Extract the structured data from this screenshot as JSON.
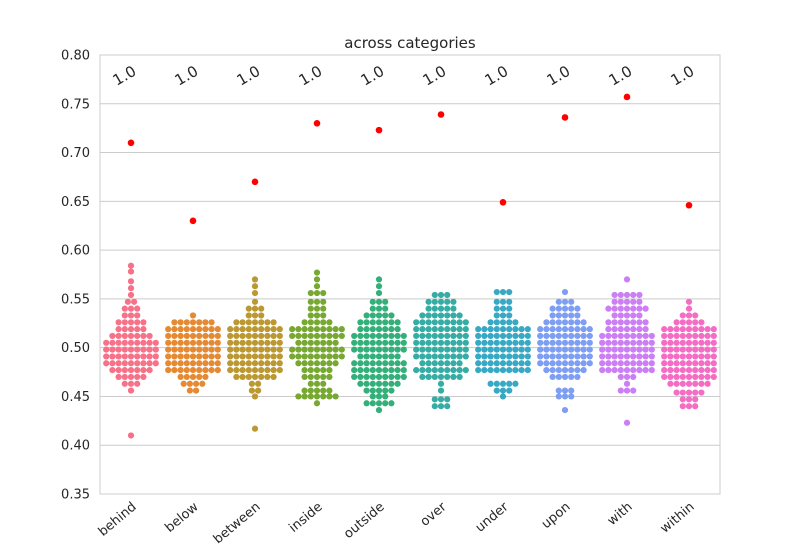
{
  "chart_data": {
    "type": "swarm",
    "title": "across categories",
    "xlabel": "",
    "ylabel": "",
    "ylim": [
      0.35,
      0.8
    ],
    "yticks": [
      "0.35",
      "0.40",
      "0.45",
      "0.50",
      "0.55",
      "0.60",
      "0.65",
      "0.70",
      "0.75",
      "0.80"
    ],
    "grid": "horizontal",
    "categories": [
      "behind",
      "below",
      "between",
      "inside",
      "outside",
      "over",
      "under",
      "upon",
      "with",
      "within"
    ],
    "annotations": [
      "1.0",
      "1.0",
      "1.0",
      "1.0",
      "1.0",
      "1.0",
      "1.0",
      "1.0",
      "1.0",
      "1.0"
    ],
    "highlight_color": "#ff0000",
    "highlight_values": [
      0.71,
      0.63,
      0.67,
      0.73,
      0.723,
      0.739,
      0.649,
      0.736,
      0.757,
      0.646
    ],
    "colors": [
      "#f77189",
      "#e58a32",
      "#bb9831",
      "#77a831",
      "#33b07a",
      "#35ada4",
      "#38a9c5",
      "#7e9ef4",
      "#cc7ef4",
      "#f56cc4"
    ],
    "distributions": [
      {
        "category": "behind",
        "min": 0.456,
        "max": 0.584,
        "outliers": [
          0.41
        ],
        "profile": [
          [
            0.456,
            1
          ],
          [
            0.463,
            3
          ],
          [
            0.47,
            5
          ],
          [
            0.477,
            7
          ],
          [
            0.484,
            9
          ],
          [
            0.491,
            9
          ],
          [
            0.498,
            9
          ],
          [
            0.505,
            9
          ],
          [
            0.512,
            7
          ],
          [
            0.519,
            5
          ],
          [
            0.526,
            5
          ],
          [
            0.533,
            3
          ],
          [
            0.54,
            3
          ],
          [
            0.547,
            2
          ],
          [
            0.554,
            1
          ],
          [
            0.561,
            1
          ],
          [
            0.568,
            1
          ],
          [
            0.578,
            1
          ],
          [
            0.584,
            1
          ]
        ]
      },
      {
        "category": "below",
        "min": 0.456,
        "max": 0.537,
        "outliers": [],
        "profile": [
          [
            0.456,
            2
          ],
          [
            0.463,
            4
          ],
          [
            0.47,
            5
          ],
          [
            0.477,
            9
          ],
          [
            0.484,
            9
          ],
          [
            0.491,
            9
          ],
          [
            0.498,
            9
          ],
          [
            0.505,
            9
          ],
          [
            0.512,
            9
          ],
          [
            0.519,
            9
          ],
          [
            0.526,
            7
          ],
          [
            0.533,
            1
          ]
        ]
      },
      {
        "category": "between",
        "min": 0.45,
        "max": 0.57,
        "outliers": [
          0.417
        ],
        "profile": [
          [
            0.45,
            1
          ],
          [
            0.456,
            2
          ],
          [
            0.463,
            2
          ],
          [
            0.47,
            7
          ],
          [
            0.477,
            9
          ],
          [
            0.484,
            9
          ],
          [
            0.491,
            9
          ],
          [
            0.498,
            9
          ],
          [
            0.505,
            9
          ],
          [
            0.512,
            9
          ],
          [
            0.519,
            9
          ],
          [
            0.526,
            7
          ],
          [
            0.533,
            3
          ],
          [
            0.54,
            3
          ],
          [
            0.547,
            1
          ],
          [
            0.556,
            1
          ],
          [
            0.563,
            1
          ],
          [
            0.57,
            1
          ]
        ]
      },
      {
        "category": "inside",
        "min": 0.443,
        "max": 0.577,
        "outliers": [],
        "profile": [
          [
            0.443,
            1
          ],
          [
            0.45,
            7
          ],
          [
            0.456,
            5
          ],
          [
            0.463,
            3
          ],
          [
            0.47,
            5
          ],
          [
            0.477,
            5
          ],
          [
            0.484,
            7
          ],
          [
            0.491,
            9
          ],
          [
            0.498,
            9
          ],
          [
            0.505,
            7
          ],
          [
            0.512,
            9
          ],
          [
            0.519,
            9
          ],
          [
            0.526,
            5
          ],
          [
            0.533,
            3
          ],
          [
            0.54,
            3
          ],
          [
            0.547,
            3
          ],
          [
            0.556,
            3
          ],
          [
            0.563,
            1
          ],
          [
            0.57,
            1
          ],
          [
            0.577,
            1
          ]
        ]
      },
      {
        "category": "outside",
        "min": 0.436,
        "max": 0.57,
        "outliers": [],
        "profile": [
          [
            0.436,
            1
          ],
          [
            0.443,
            5
          ],
          [
            0.45,
            3
          ],
          [
            0.456,
            5
          ],
          [
            0.463,
            7
          ],
          [
            0.47,
            9
          ],
          [
            0.477,
            9
          ],
          [
            0.484,
            9
          ],
          [
            0.491,
            7
          ],
          [
            0.498,
            9
          ],
          [
            0.505,
            9
          ],
          [
            0.512,
            9
          ],
          [
            0.519,
            7
          ],
          [
            0.526,
            7
          ],
          [
            0.533,
            5
          ],
          [
            0.54,
            3
          ],
          [
            0.547,
            3
          ],
          [
            0.556,
            1
          ],
          [
            0.563,
            1
          ],
          [
            0.57,
            1
          ]
        ]
      },
      {
        "category": "over",
        "min": 0.44,
        "max": 0.554,
        "outliers": [],
        "profile": [
          [
            0.44,
            3
          ],
          [
            0.447,
            3
          ],
          [
            0.456,
            1
          ],
          [
            0.463,
            1
          ],
          [
            0.47,
            7
          ],
          [
            0.477,
            9
          ],
          [
            0.484,
            7
          ],
          [
            0.491,
            9
          ],
          [
            0.498,
            9
          ],
          [
            0.505,
            9
          ],
          [
            0.512,
            9
          ],
          [
            0.519,
            9
          ],
          [
            0.526,
            9
          ],
          [
            0.533,
            7
          ],
          [
            0.54,
            5
          ],
          [
            0.547,
            5
          ],
          [
            0.554,
            3
          ]
        ]
      },
      {
        "category": "under",
        "min": 0.45,
        "max": 0.557,
        "outliers": [],
        "profile": [
          [
            0.45,
            1
          ],
          [
            0.456,
            3
          ],
          [
            0.463,
            5
          ],
          [
            0.477,
            9
          ],
          [
            0.484,
            9
          ],
          [
            0.491,
            9
          ],
          [
            0.498,
            9
          ],
          [
            0.505,
            9
          ],
          [
            0.512,
            9
          ],
          [
            0.519,
            9
          ],
          [
            0.526,
            5
          ],
          [
            0.533,
            3
          ],
          [
            0.54,
            3
          ],
          [
            0.547,
            3
          ],
          [
            0.557,
            3
          ]
        ]
      },
      {
        "category": "upon",
        "min": 0.436,
        "max": 0.557,
        "outliers": [],
        "profile": [
          [
            0.436,
            1
          ],
          [
            0.45,
            3
          ],
          [
            0.456,
            3
          ],
          [
            0.47,
            5
          ],
          [
            0.477,
            7
          ],
          [
            0.484,
            9
          ],
          [
            0.491,
            9
          ],
          [
            0.498,
            9
          ],
          [
            0.505,
            9
          ],
          [
            0.512,
            9
          ],
          [
            0.519,
            9
          ],
          [
            0.526,
            7
          ],
          [
            0.533,
            5
          ],
          [
            0.54,
            5
          ],
          [
            0.547,
            3
          ],
          [
            0.557,
            1
          ]
        ]
      },
      {
        "category": "with",
        "min": 0.456,
        "max": 0.57,
        "outliers": [
          0.423
        ],
        "profile": [
          [
            0.456,
            3
          ],
          [
            0.463,
            1
          ],
          [
            0.47,
            3
          ],
          [
            0.477,
            9
          ],
          [
            0.484,
            9
          ],
          [
            0.491,
            9
          ],
          [
            0.498,
            9
          ],
          [
            0.505,
            9
          ],
          [
            0.512,
            9
          ],
          [
            0.519,
            7
          ],
          [
            0.526,
            7
          ],
          [
            0.533,
            5
          ],
          [
            0.54,
            7
          ],
          [
            0.547,
            5
          ],
          [
            0.554,
            5
          ],
          [
            0.57,
            1
          ]
        ]
      },
      {
        "category": "within",
        "min": 0.44,
        "max": 0.547,
        "outliers": [],
        "profile": [
          [
            0.44,
            3
          ],
          [
            0.447,
            3
          ],
          [
            0.454,
            5
          ],
          [
            0.463,
            7
          ],
          [
            0.47,
            9
          ],
          [
            0.477,
            9
          ],
          [
            0.484,
            9
          ],
          [
            0.491,
            9
          ],
          [
            0.498,
            9
          ],
          [
            0.505,
            9
          ],
          [
            0.512,
            9
          ],
          [
            0.519,
            9
          ],
          [
            0.526,
            5
          ],
          [
            0.533,
            3
          ],
          [
            0.54,
            1
          ],
          [
            0.547,
            1
          ]
        ]
      }
    ]
  }
}
